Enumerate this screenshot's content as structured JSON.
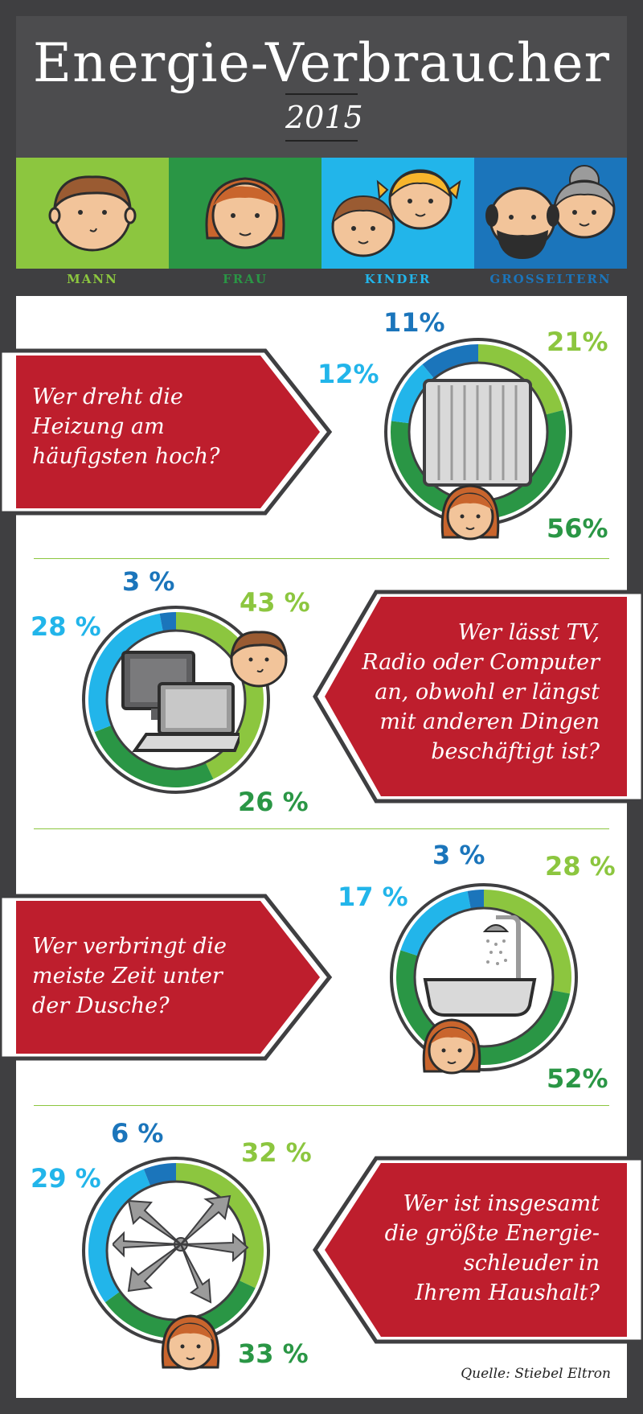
{
  "header": {
    "title": "Energie-Verbraucher",
    "year": "2015"
  },
  "legend": [
    {
      "label": "MANN",
      "color": "#8cc63f",
      "text_color": "#8cc63f"
    },
    {
      "label": "FRAU",
      "color": "#2a9645",
      "text_color": "#2a9645"
    },
    {
      "label": "KINDER",
      "color": "#22b5ea",
      "text_color": "#22b5ea"
    },
    {
      "label": "GROSSELTERN",
      "color": "#1b75bb",
      "text_color": "#1b75bb"
    }
  ],
  "colors": {
    "mann": "#8cc63f",
    "frau": "#2a9645",
    "kinder": "#22b5ea",
    "grosseltern": "#1b75bb",
    "question_bg": "#be1e2d"
  },
  "chart_data": [
    {
      "type": "pie",
      "question": [
        "Wer dreht die",
        "Heizung am",
        "häufigsten hoch?"
      ],
      "icon": "radiator-icon",
      "categories": [
        "MANN",
        "FRAU",
        "KINDER",
        "GROSSELTERN"
      ],
      "values": [
        21,
        56,
        12,
        11
      ],
      "labels": [
        "21%",
        "56%",
        "12%",
        "11%"
      ]
    },
    {
      "type": "pie",
      "question": [
        "Wer lässt TV,",
        "Radio oder Computer",
        "an, obwohl er längst",
        "mit anderen Dingen",
        "beschäftigt ist?"
      ],
      "icon": "computer-icon",
      "categories": [
        "MANN",
        "FRAU",
        "KINDER",
        "GROSSELTERN"
      ],
      "values": [
        43,
        26,
        28,
        3
      ],
      "labels": [
        "43 %",
        "26 %",
        "28 %",
        "3 %"
      ]
    },
    {
      "type": "pie",
      "question": [
        "Wer verbringt die",
        "meiste Zeit unter",
        "der Dusche?"
      ],
      "icon": "bathtub-shower-icon",
      "categories": [
        "MANN",
        "FRAU",
        "KINDER",
        "GROSSELTERN"
      ],
      "values": [
        28,
        52,
        17,
        3
      ],
      "labels": [
        "28 %",
        "52%",
        "17 %",
        "3 %"
      ]
    },
    {
      "type": "pie",
      "question": [
        "Wer ist insgesamt",
        "die größte Energie-",
        "schleuder in",
        "Ihrem Haushalt?"
      ],
      "icon": "arrows-burst-icon",
      "categories": [
        "MANN",
        "FRAU",
        "KINDER",
        "GROSSELTERN"
      ],
      "values": [
        32,
        33,
        29,
        6
      ],
      "labels": [
        "32 %",
        "33 %",
        "29 %",
        "6 %"
      ]
    }
  ],
  "source": "Quelle: Stiebel Eltron"
}
